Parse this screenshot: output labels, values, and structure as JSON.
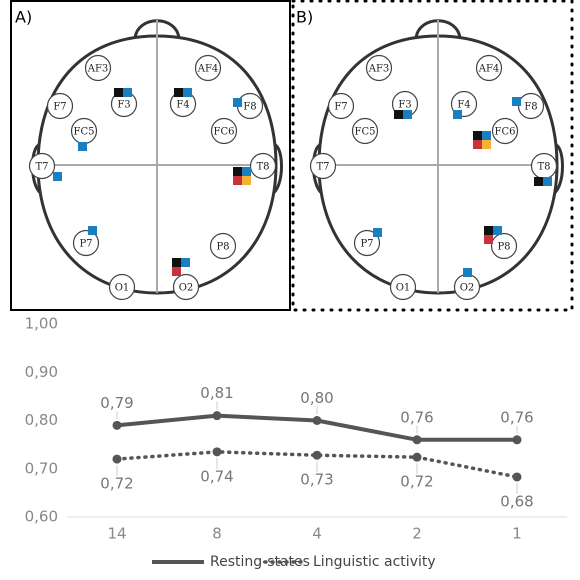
{
  "panels": [
    {
      "label": "A)",
      "electrodes": [
        "AF3",
        "AF4",
        "F7",
        "F3",
        "F4",
        "F8",
        "FC5",
        "FC6",
        "T7",
        "T8",
        "P7",
        "P8",
        "O1",
        "O2"
      ]
    },
    {
      "label": "B)",
      "electrodes": [
        "AF3",
        "AF4",
        "F7",
        "F3",
        "F4",
        "F8",
        "FC5",
        "FC6",
        "T7",
        "T8",
        "P7",
        "P8",
        "O1",
        "O2"
      ]
    }
  ],
  "chart_data": {
    "type": "line",
    "categories": [
      "14",
      "8",
      "4",
      "2",
      "1"
    ],
    "series": [
      {
        "name": "Resting-states",
        "color": "#555555",
        "style": "solid",
        "values": [
          0.79,
          0.81,
          0.8,
          0.76,
          0.76
        ],
        "value_labels": [
          "0,79",
          "0,81",
          "0,80",
          "0,76",
          "0,76"
        ]
      },
      {
        "name": "Linguistic activity",
        "color": "#555555",
        "style": "dotted",
        "values": [
          0.72,
          0.735,
          0.728,
          0.724,
          0.683
        ],
        "value_labels": [
          "0,72",
          "0,74",
          "0,73",
          "0,72",
          "0,68"
        ]
      }
    ],
    "ylim": [
      0.6,
      1.0
    ],
    "yticks": [
      {
        "value": 0.6,
        "label": "0,60"
      },
      {
        "value": 0.7,
        "label": "0,70"
      },
      {
        "value": 0.8,
        "label": "0,80"
      },
      {
        "value": 0.9,
        "label": "0,90"
      },
      {
        "value": 1.0,
        "label": "1,00"
      }
    ],
    "legend": "bottom"
  }
}
